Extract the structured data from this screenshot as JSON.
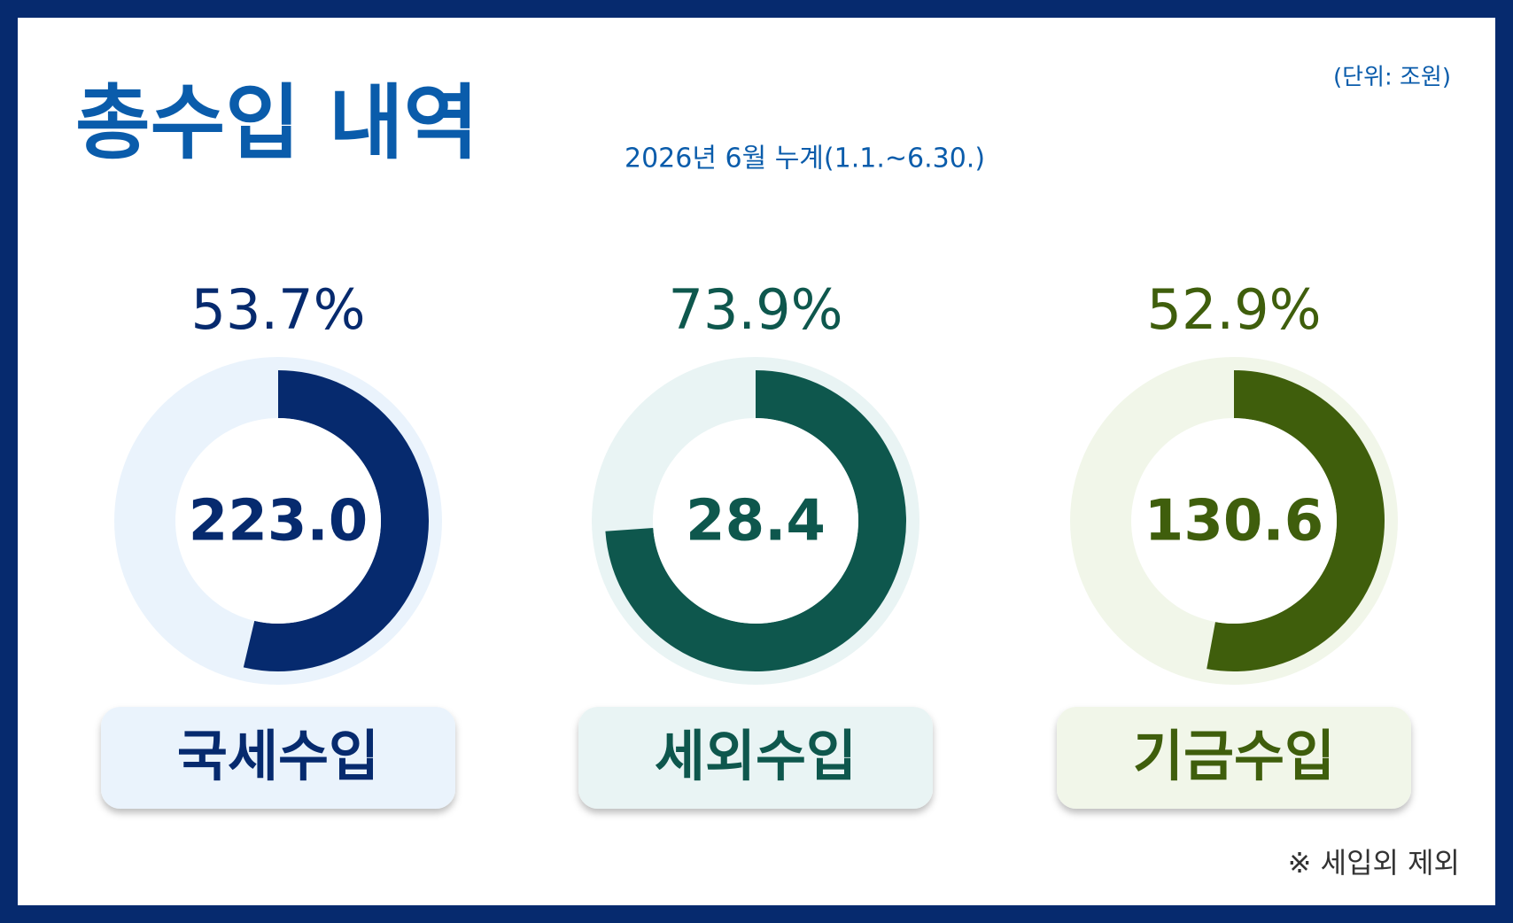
{
  "header": {
    "title": "총수입 내역",
    "subtitle": "2026년 6월 누계(1.1.~6.30.)",
    "unit": "(단위: 조원)",
    "note": "※ 세입외 제외"
  },
  "chart_data": [
    {
      "type": "donut",
      "label": "국세수입",
      "values": [
        53.7
      ],
      "value_labels": [
        "53.7%"
      ],
      "amount": {
        "value": 223,
        "label": "223.0"
      },
      "color": "#062a6e",
      "track_color": "#eaf3fc"
    },
    {
      "type": "donut",
      "label": "세외수입",
      "values": [
        73.9
      ],
      "value_labels": [
        "73.9%"
      ],
      "amount": 28.4,
      "color": "#0e574d",
      "track_color": "#e9f4f4"
    },
    {
      "type": "donut",
      "label": "기금수입",
      "values": [
        52.9
      ],
      "value_labels": [
        "52.9%"
      ],
      "amount": {
        "value": 130.6,
        "label": "130.6"
      },
      "color": "#3f5e0c",
      "track_color": "#f1f6e9"
    }
  ]
}
